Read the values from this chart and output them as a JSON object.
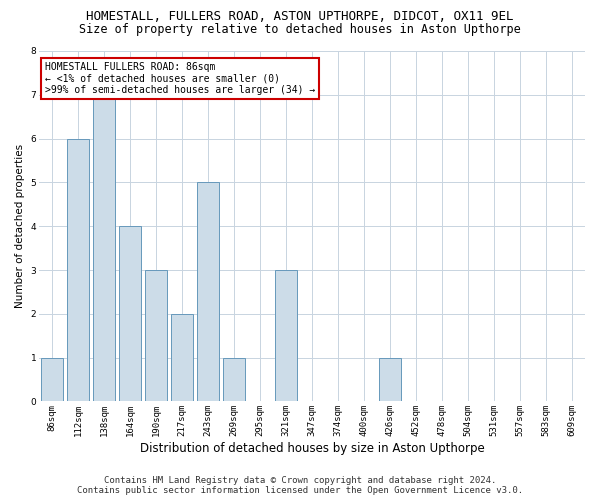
{
  "title": "HOMESTALL, FULLERS ROAD, ASTON UPTHORPE, DIDCOT, OX11 9EL",
  "subtitle": "Size of property relative to detached houses in Aston Upthorpe",
  "xlabel": "Distribution of detached houses by size in Aston Upthorpe",
  "ylabel": "Number of detached properties",
  "categories": [
    "86sqm",
    "112sqm",
    "138sqm",
    "164sqm",
    "190sqm",
    "217sqm",
    "243sqm",
    "269sqm",
    "295sqm",
    "321sqm",
    "347sqm",
    "374sqm",
    "400sqm",
    "426sqm",
    "452sqm",
    "478sqm",
    "504sqm",
    "531sqm",
    "557sqm",
    "583sqm",
    "609sqm"
  ],
  "values": [
    1,
    6,
    7,
    4,
    3,
    2,
    5,
    1,
    0,
    3,
    0,
    0,
    0,
    1,
    0,
    0,
    0,
    0,
    0,
    0,
    0
  ],
  "bar_color_normal": "#ccdce8",
  "bar_edge_color": "#6699bb",
  "annotation_box_text": "HOMESTALL FULLERS ROAD: 86sqm\n← <1% of detached houses are smaller (0)\n>99% of semi-detached houses are larger (34) →",
  "annotation_box_color": "#ffffff",
  "annotation_box_edge_color": "#cc0000",
  "ylim": [
    0,
    8
  ],
  "yticks": [
    0,
    1,
    2,
    3,
    4,
    5,
    6,
    7,
    8
  ],
  "footer_line1": "Contains HM Land Registry data © Crown copyright and database right 2024.",
  "footer_line2": "Contains public sector information licensed under the Open Government Licence v3.0.",
  "bg_color": "#ffffff",
  "grid_color": "#c8d4e0",
  "title_fontsize": 9,
  "subtitle_fontsize": 8.5,
  "xlabel_fontsize": 8.5,
  "ylabel_fontsize": 7.5,
  "tick_fontsize": 6.5,
  "ann_fontsize": 7,
  "footer_fontsize": 6.5
}
